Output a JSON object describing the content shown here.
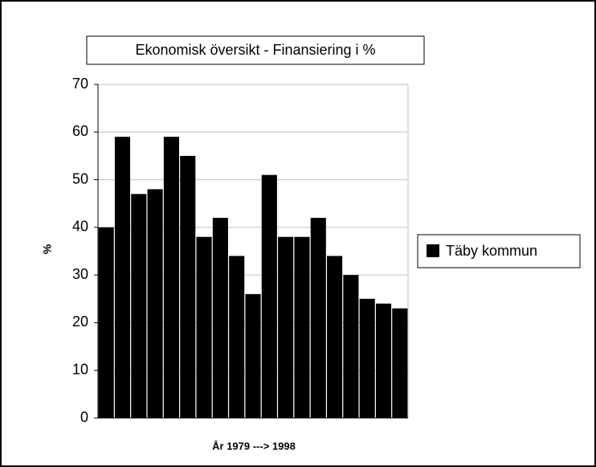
{
  "chart_data": {
    "type": "bar",
    "title": "Ekonomisk översikt  - Finansiering i %",
    "x_label": "År  1979 ---> 1998",
    "y_label": "%",
    "categories": [
      null,
      null,
      null,
      null,
      null,
      null,
      null,
      null,
      null,
      null,
      null,
      null,
      null,
      null,
      null,
      null,
      null,
      null,
      null
    ],
    "series": [
      {
        "name": "Täby kommun",
        "color": "#000000",
        "values": [
          40,
          59,
          47,
          48,
          59,
          55,
          38,
          42,
          34,
          26,
          51,
          38,
          38,
          42,
          34,
          30,
          25,
          24,
          23
        ]
      }
    ],
    "ylim": [
      0,
      70
    ],
    "yticks": [
      0,
      10,
      20,
      30,
      40,
      50,
      60,
      70
    ],
    "grid": true,
    "legend": "right"
  }
}
